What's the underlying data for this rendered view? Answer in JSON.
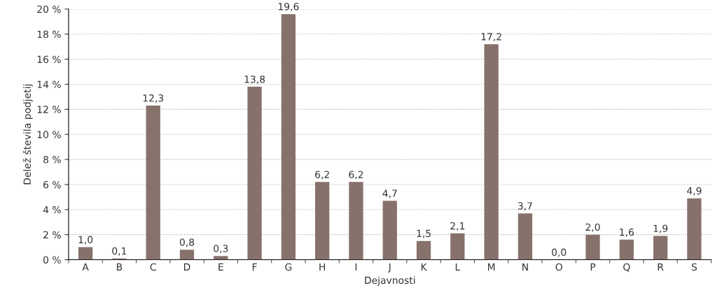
{
  "chart_data": {
    "type": "bar",
    "xlabel": "Dejavnosti",
    "ylabel": "Delež števila podjetij",
    "categories": [
      "A",
      "B",
      "C",
      "D",
      "E",
      "F",
      "G",
      "H",
      "I",
      "J",
      "K",
      "L",
      "M",
      "N",
      "O",
      "P",
      "Q",
      "R",
      "S"
    ],
    "values": [
      1.0,
      0.1,
      12.3,
      0.8,
      0.3,
      13.8,
      19.6,
      6.2,
      6.2,
      4.7,
      1.5,
      2.1,
      17.2,
      3.7,
      0.0,
      2.0,
      1.6,
      1.9,
      4.9
    ],
    "value_labels": [
      "1,0",
      "0,1",
      "12,3",
      "0,8",
      "0,3",
      "13,8",
      "19,6",
      "6,2",
      "6,2",
      "4,7",
      "1,5",
      "2,1",
      "17,2",
      "3,7",
      "0,0",
      "2,0",
      "1,6",
      "1,9",
      "4,9"
    ],
    "color": "#87716b",
    "ylim": [
      0,
      20
    ],
    "yticks": [
      {
        "value": 0,
        "label": "0 %"
      },
      {
        "value": 2,
        "label": "2 %"
      },
      {
        "value": 4,
        "label": "4 %"
      },
      {
        "value": 6,
        "label": "6 %"
      },
      {
        "value": 8,
        "label": "8 %"
      },
      {
        "value": 10,
        "label": "10 %"
      },
      {
        "value": 12,
        "label": "12 %"
      },
      {
        "value": 14,
        "label": "14 %"
      },
      {
        "value": 16,
        "label": "16 %"
      },
      {
        "value": 18,
        "label": "18 %"
      },
      {
        "value": 20,
        "label": "20 %"
      }
    ],
    "grid": "y",
    "legend": false
  }
}
